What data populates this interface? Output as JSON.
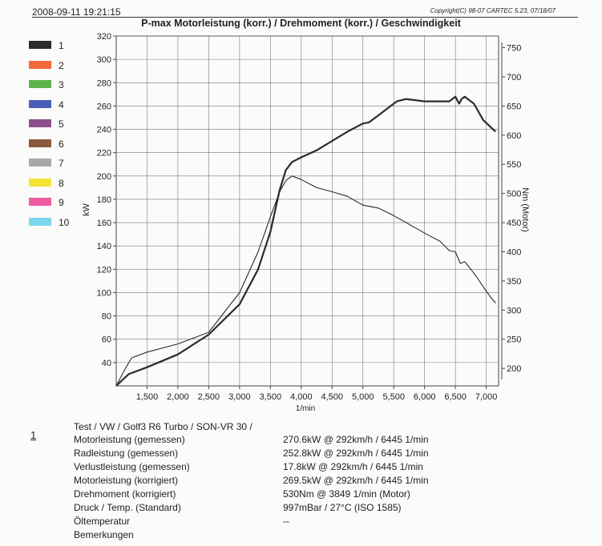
{
  "header": {
    "datetime": "2008-09-11 19:21:15",
    "copyright": "Copyright(C) 98-07 CARTEC 5.23, 07/18/07",
    "title": "P-max Motorleistung (korr.) / Drehmoment (korr.) / Geschwindigkeit"
  },
  "legend": [
    {
      "label": "1",
      "color": "#2b2b2b"
    },
    {
      "label": "2",
      "color": "#f26a3c"
    },
    {
      "label": "3",
      "color": "#5db44e"
    },
    {
      "label": "4",
      "color": "#4a5fb5"
    },
    {
      "label": "5",
      "color": "#8e4f8c"
    },
    {
      "label": "6",
      "color": "#8a5a3c"
    },
    {
      "label": "7",
      "color": "#a9a9a9"
    },
    {
      "label": "8",
      "color": "#f3e334"
    },
    {
      "label": "9",
      "color": "#ef5ba1"
    },
    {
      "label": "10",
      "color": "#7cd6ee"
    }
  ],
  "chart_data": {
    "type": "line",
    "xlabel": "1/min",
    "ylabel": "kW",
    "y2label": "Nm (Motor)",
    "xlim": [
      1000,
      7200
    ],
    "ylim": [
      20,
      320
    ],
    "y2lim": [
      170,
      770
    ],
    "x_ticks": [
      1500,
      2000,
      2500,
      3000,
      3500,
      4000,
      4500,
      5000,
      5500,
      6000,
      6500,
      7000
    ],
    "x_tick_labels": [
      "1,500",
      "2,000",
      "2,500",
      "3,000",
      "3,500",
      "4,000",
      "4,500",
      "5,000",
      "5,500",
      "6,000",
      "6,500",
      "7,000"
    ],
    "y_ticks": [
      40,
      60,
      80,
      100,
      120,
      140,
      160,
      180,
      200,
      220,
      240,
      260,
      280,
      300,
      320
    ],
    "y2_ticks": [
      200,
      250,
      300,
      350,
      400,
      450,
      500,
      550,
      600,
      650,
      700,
      750
    ],
    "grid": true,
    "series": [
      {
        "axis": "y",
        "points": [
          [
            1000,
            20
          ],
          [
            1200,
            30
          ],
          [
            1500,
            36
          ],
          [
            2000,
            47
          ],
          [
            2500,
            64
          ],
          [
            3000,
            90
          ],
          [
            3300,
            120
          ],
          [
            3500,
            152
          ],
          [
            3650,
            188
          ],
          [
            3750,
            205
          ],
          [
            3850,
            212
          ],
          [
            4000,
            216
          ],
          [
            4250,
            222
          ],
          [
            4500,
            230
          ],
          [
            4750,
            238
          ],
          [
            5000,
            245
          ],
          [
            5100,
            246
          ],
          [
            5250,
            252
          ],
          [
            5450,
            260
          ],
          [
            5550,
            264
          ],
          [
            5700,
            266
          ],
          [
            6000,
            264
          ],
          [
            6200,
            264
          ],
          [
            6400,
            264
          ],
          [
            6500,
            268
          ],
          [
            6560,
            262
          ],
          [
            6600,
            266
          ],
          [
            6650,
            268
          ],
          [
            6800,
            262
          ],
          [
            6950,
            248
          ],
          [
            7050,
            243
          ],
          [
            7150,
            238
          ]
        ]
      },
      {
        "axis": "y2",
        "points": [
          [
            1000,
            170
          ],
          [
            1150,
            200
          ],
          [
            1250,
            218
          ],
          [
            1500,
            228
          ],
          [
            2000,
            242
          ],
          [
            2500,
            262
          ],
          [
            3000,
            330
          ],
          [
            3300,
            400
          ],
          [
            3500,
            460
          ],
          [
            3650,
            503
          ],
          [
            3750,
            522
          ],
          [
            3849,
            530
          ],
          [
            4000,
            524
          ],
          [
            4250,
            510
          ],
          [
            4500,
            503
          ],
          [
            4750,
            495
          ],
          [
            5000,
            480
          ],
          [
            5250,
            475
          ],
          [
            5500,
            462
          ],
          [
            6000,
            432
          ],
          [
            6250,
            418
          ],
          [
            6400,
            402
          ],
          [
            6500,
            400
          ],
          [
            6580,
            380
          ],
          [
            6650,
            383
          ],
          [
            6750,
            370
          ],
          [
            6850,
            356
          ],
          [
            6950,
            340
          ],
          [
            7050,
            325
          ],
          [
            7150,
            312
          ]
        ]
      }
    ]
  },
  "results": {
    "index": "1",
    "header": "Test / VW / Golf3  R6 Turbo / SON-VR 30 /",
    "rows": [
      {
        "label": "Motorleistung (gemessen)",
        "value": "270.6kW @ 292km/h / 6445 1/min"
      },
      {
        "label": "Radleistung (gemessen)",
        "value": "252.8kW @ 292km/h / 6445 1/min"
      },
      {
        "label": "Verlustleistung (gemessen)",
        "value": "17.8kW @ 292km/h / 6445 1/min"
      },
      {
        "label": "Motorleistung (korrigiert)",
        "value": "269.5kW @ 292km/h / 6445 1/min"
      },
      {
        "label": "Drehmoment (korrigiert)",
        "value": "530Nm @ 3849 1/min (Motor)"
      },
      {
        "label": "Druck / Temp. (Standard)",
        "value": "997mBar / 27°C    (ISO 1585)"
      },
      {
        "label": "Öltemperatur",
        "value": "--"
      },
      {
        "label": "Bemerkungen",
        "value": ""
      }
    ]
  }
}
